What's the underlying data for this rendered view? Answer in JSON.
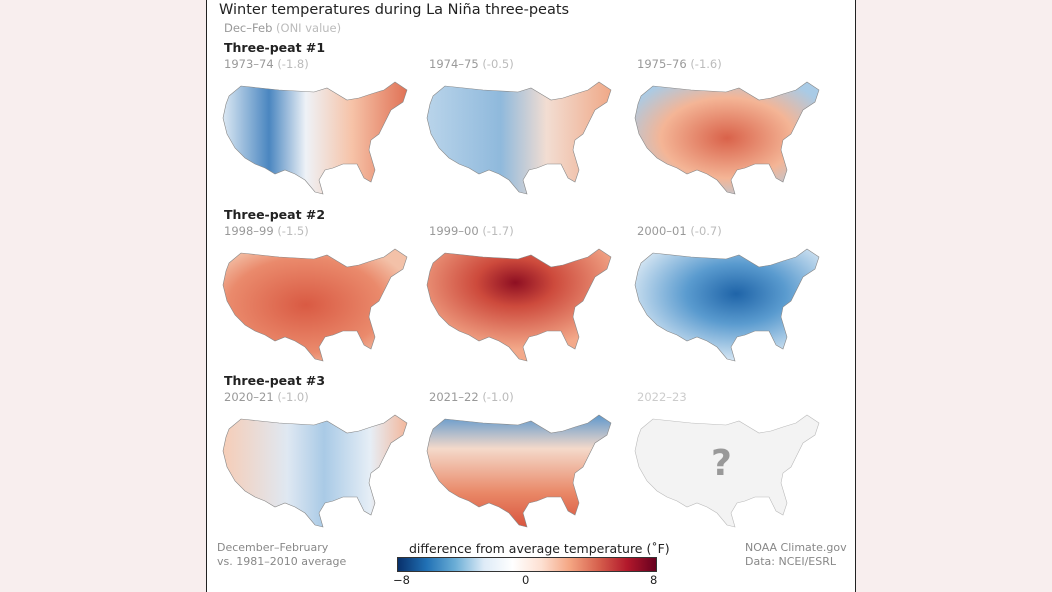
{
  "title": "Winter temperatures during La Niña three-peats",
  "subtitle": {
    "season": "Dec–Feb",
    "oni_label": "(ONI value)"
  },
  "groups": [
    {
      "title": "Three-peat #1",
      "panels": [
        {
          "years": "1973–74",
          "oni": "(-1.8)",
          "palette": "mixed-west-cold-east-warm"
        },
        {
          "years": "1974–75",
          "oni": "(-0.5)",
          "palette": "cool-west-warm-east"
        },
        {
          "years": "1975–76",
          "oni": "(-1.6)",
          "palette": "warm-central-cool-northeast"
        }
      ]
    },
    {
      "title": "Three-peat #2",
      "panels": [
        {
          "years": "1998–99",
          "oni": "(-1.5)",
          "palette": "warm"
        },
        {
          "years": "1999–00",
          "oni": "(-1.7)",
          "palette": "very-warm-central"
        },
        {
          "years": "2000–01",
          "oni": "(-0.7)",
          "palette": "cold-central"
        }
      ]
    },
    {
      "title": "Three-peat #3",
      "panels": [
        {
          "years": "2020–21",
          "oni": "(-1.0)",
          "palette": "mixed-cool-central"
        },
        {
          "years": "2021–22",
          "oni": "(-1.0)",
          "palette": "warm-south-cold-north"
        },
        {
          "years": "2022–23",
          "oni": "",
          "palette": "unknown",
          "placeholder": "?"
        }
      ]
    }
  ],
  "footer": {
    "left_line1": "December–February",
    "left_line2": "vs. 1981–2010 average",
    "right_line1": "NOAA Climate.gov",
    "right_line2": "Data: NCEI/ESRL"
  },
  "colorbar": {
    "title": "difference from average temperature (˚F)",
    "min": "−8",
    "mid": "0",
    "max": "8",
    "colors": [
      "#08306b",
      "#2171b5",
      "#6baed6",
      "#ffffff",
      "#f4a582",
      "#b2182b",
      "#67001f"
    ]
  }
}
